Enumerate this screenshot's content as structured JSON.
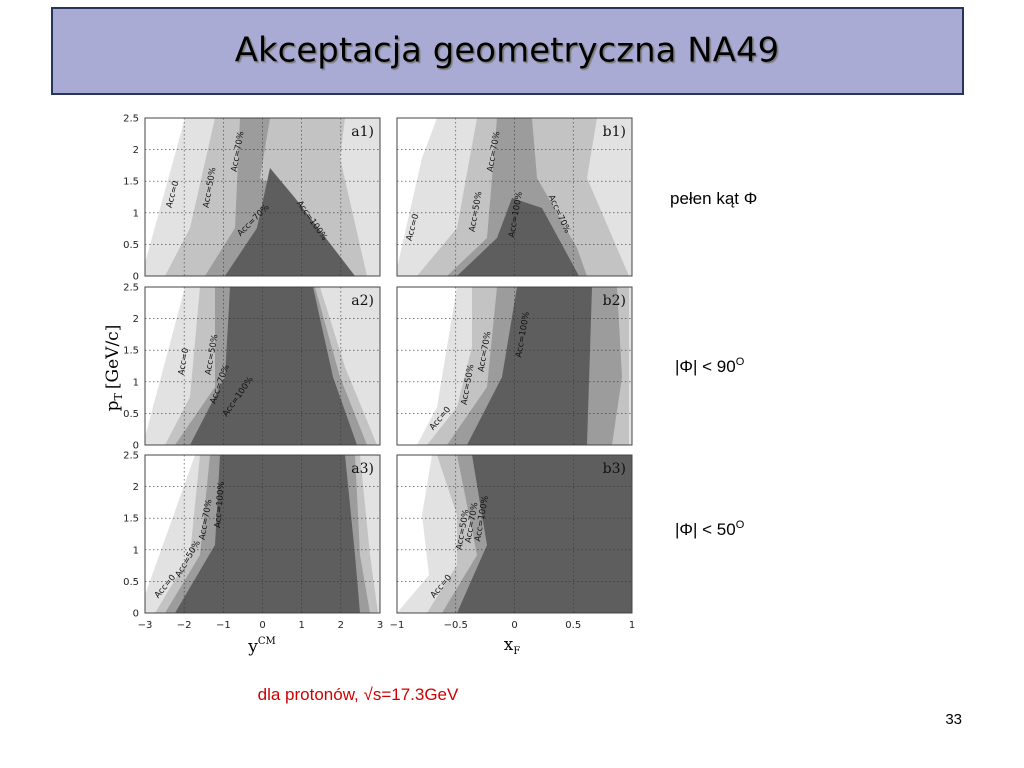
{
  "title": "Akceptacja geometryczna NA49",
  "figure": {
    "y_axis_label": {
      "main": "p",
      "sub": "T",
      "unit": "[GeV/c]"
    },
    "x_axis_left": {
      "main": "y",
      "sup": "CM"
    },
    "x_axis_right": {
      "main": "x",
      "sub": "F"
    },
    "yticks": [
      "0",
      "0.5",
      "1",
      "1.5",
      "2",
      "2.5"
    ],
    "xticks_left": [
      "−3",
      "−2",
      "−1",
      "0",
      "1",
      "2",
      "3"
    ],
    "xticks_right": [
      "−1",
      "−0.5",
      "0",
      "0.5",
      "1"
    ],
    "panels": [
      {
        "label": "a1)",
        "contours": [
          "Acc=0",
          "Acc=50%",
          "Acc=70%",
          "Acc=70%",
          "Acc=100%"
        ]
      },
      {
        "label": "b1)",
        "contours": [
          "Acc=0",
          "Acc=50%",
          "Acc=70%",
          "Acc=100%",
          "Acc=70%"
        ]
      },
      {
        "label": "a2)",
        "contours": [
          "Acc=0",
          "Acc=50%",
          "Acc=70%",
          "Acc=100%"
        ]
      },
      {
        "label": "b2)",
        "contours": [
          "Acc=0",
          "Acc=50%",
          "Acc=70%",
          "Acc=100%"
        ]
      },
      {
        "label": "a3)",
        "contours": [
          "Acc=0",
          "Acc=50%",
          "Acc=70%",
          "Acc=100%"
        ]
      },
      {
        "label": "b3)",
        "contours": [
          "Acc=0",
          "Acc=50%",
          "Acc=70%",
          "Acc=100%"
        ]
      }
    ]
  },
  "row_labels": [
    {
      "text": "pełen kąt Φ"
    },
    {
      "text": "|Φ| < 90",
      "sup": "O"
    },
    {
      "text": "|Φ| < 50",
      "sup": "O"
    }
  ],
  "caption": "dla protonów, √s=17.3GeV",
  "page_number": "33"
}
